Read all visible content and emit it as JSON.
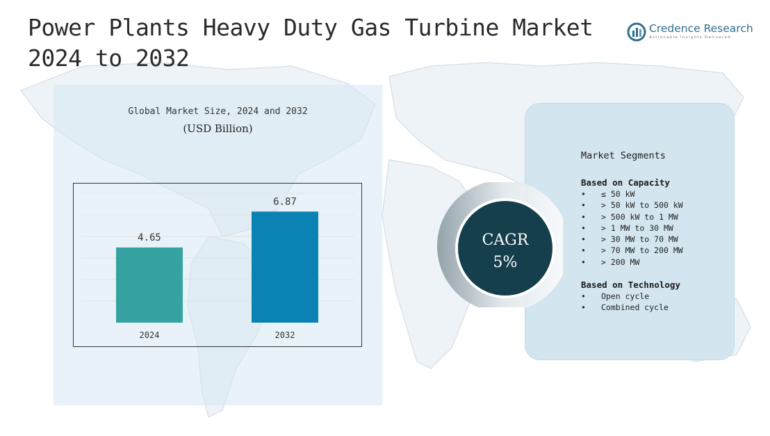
{
  "page": {
    "title_line1": "Power Plants Heavy Duty Gas Turbine Market",
    "title_line2": "2024 to 2032"
  },
  "logo": {
    "name": "Credence Research",
    "tagline": "Actionable Insights Delivered",
    "icon": "bar-chart-logo-icon"
  },
  "chart_data": {
    "type": "bar",
    "title": "Global Market Size, 2024 and 2032",
    "subtitle": "(USD Billion)",
    "categories": [
      "2024",
      "2032"
    ],
    "values": [
      4.65,
      6.87
    ],
    "value_labels": [
      "4.65",
      "6.87"
    ],
    "colors": [
      "#36a3a2",
      "#0b82b4"
    ],
    "ylim": [
      0,
      8
    ],
    "grid": true
  },
  "cagr": {
    "label": "CAGR",
    "value": "5%"
  },
  "segments": {
    "title": "Market Segments",
    "groups": [
      {
        "heading": "Based on Capacity",
        "items": [
          "≤ 50 kW",
          "> 50 kW to 500 kW",
          "> 500 kW to 1 MW",
          "> 1 MW to 30 MW",
          "> 30 MW to 70 MW",
          "> 70 MW to 200 MW",
          "> 200 MW"
        ]
      },
      {
        "heading": "Based on Technology",
        "items": [
          "Open cycle",
          "Combined cycle"
        ]
      }
    ],
    "bullet": "•"
  },
  "colors": {
    "panel_left": "#d6e8f3",
    "panel_right": "#d3e6f0",
    "cagr_circle": "#153f4c",
    "logo_blue": "#2f6f8e"
  }
}
